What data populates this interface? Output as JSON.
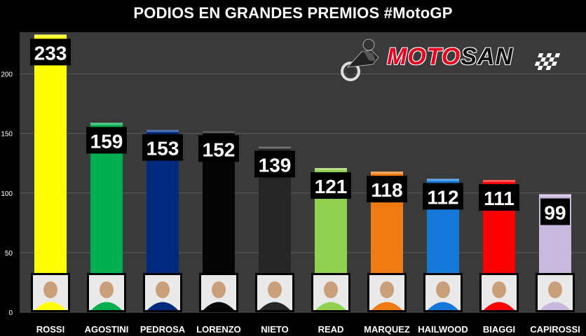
{
  "title": "PODIOS EN GRANDES PREMIOS #MotoGP",
  "logo": {
    "part1": "MOTO",
    "part2": "SAN"
  },
  "colors": {
    "background": "#000000",
    "plot_background": "#3a3a3a",
    "grid": "#5a5a5a",
    "label_box": "#000000"
  },
  "chart_data": {
    "type": "bar",
    "title": "PODIOS EN GRANDES PREMIOS #MotoGP",
    "categories": [
      "ROSSI",
      "AGOSTINI",
      "PEDROSA",
      "LORENZO",
      "NIETO",
      "READ",
      "MARQUEZ",
      "HAILWOOD",
      "BIAGGI",
      "CAPIROSSI"
    ],
    "values": [
      233,
      159,
      153,
      152,
      139,
      121,
      118,
      112,
      111,
      99
    ],
    "bar_colors": [
      "#ffff00",
      "#00b050",
      "#002a80",
      "#050505",
      "#262626",
      "#92d050",
      "#f07b10",
      "#1479d8",
      "#ff0000",
      "#c9b8de"
    ],
    "yticks": [
      0,
      50,
      100,
      150,
      200
    ],
    "ylim": [
      0,
      235
    ],
    "xlabel": "",
    "ylabel": "",
    "grid": true,
    "data_labels": true,
    "legend": "none"
  }
}
